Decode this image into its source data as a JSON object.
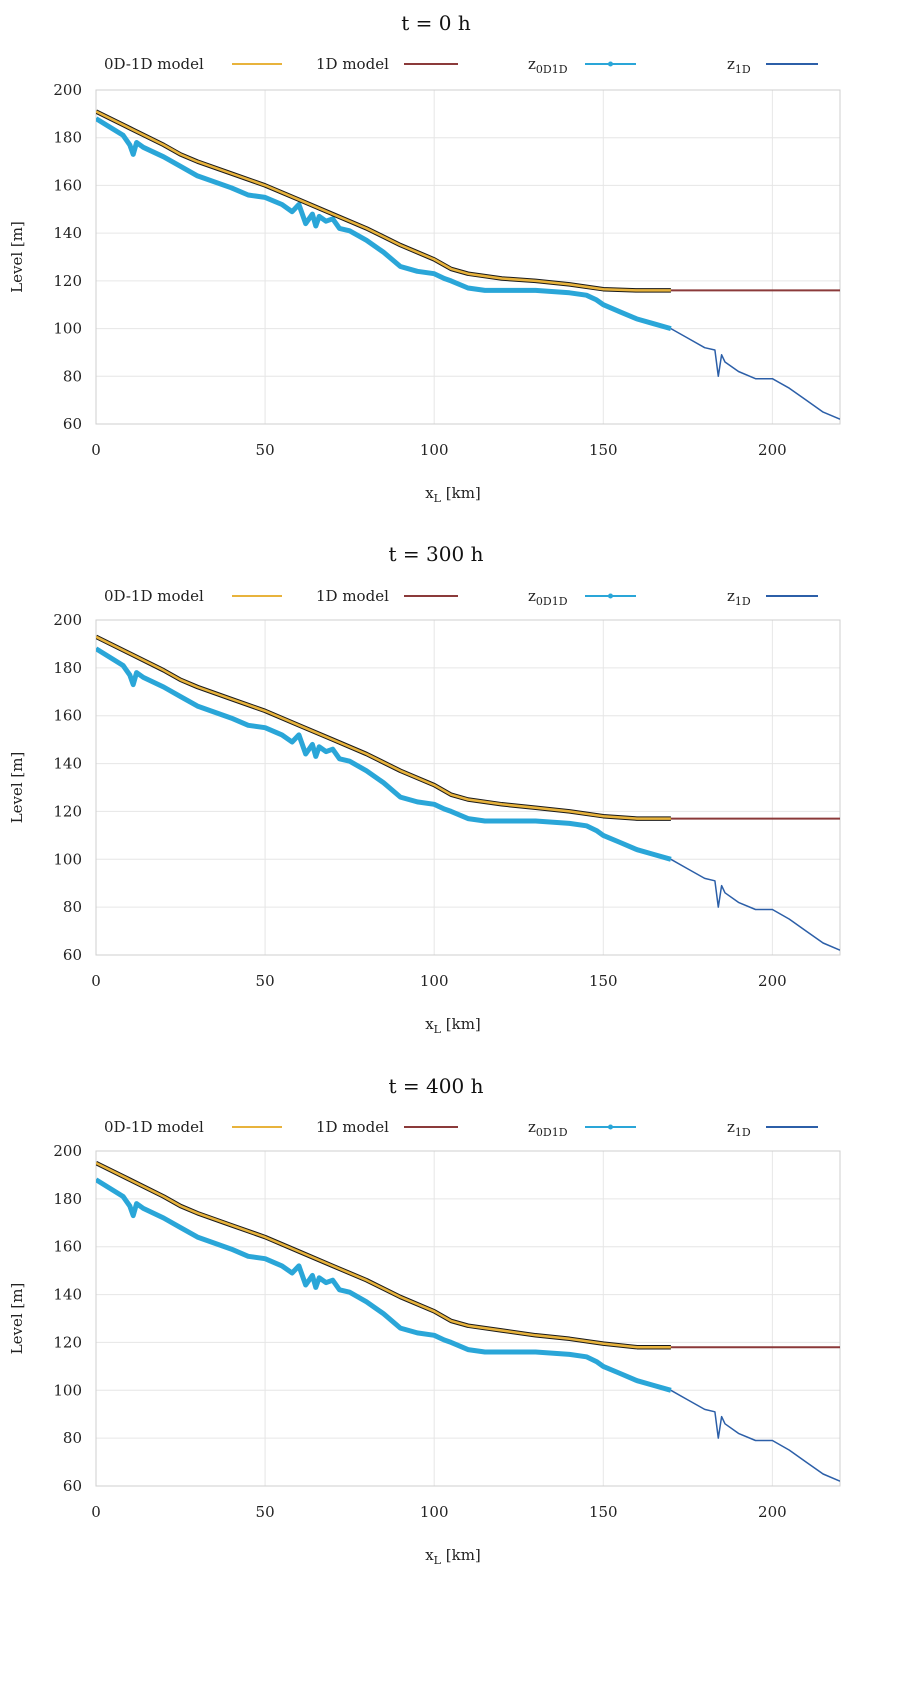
{
  "colors": {
    "model_0d1d": "#e8b33c",
    "model_0d1d_edge": "#1a1a1a",
    "model_1d": "#8b3a3a",
    "z_0d1d": "#2aa6d8",
    "z_1d": "#2c5fa8",
    "grid": "#e6e6e6",
    "axis": "#666666"
  },
  "legend": [
    {
      "key": "model_0d1d",
      "label": "0D-1D model",
      "sub": ""
    },
    {
      "key": "model_1d",
      "label": "1D model",
      "sub": ""
    },
    {
      "key": "z_0d1d",
      "label": "z",
      "sub": "0D1D"
    },
    {
      "key": "z_1d",
      "label": "z",
      "sub": "1D"
    }
  ],
  "chart_data": [
    {
      "type": "line",
      "title": "t = 0 h",
      "xlabel": "x",
      "xlabel_sub": "L",
      "xlabel_unit": "[km]",
      "ylabel": "Level [m]",
      "xlim": [
        0,
        220
      ],
      "ylim": [
        60,
        200
      ],
      "xticks": [
        0,
        50,
        100,
        150,
        200
      ],
      "yticks": [
        60,
        80,
        100,
        120,
        140,
        160,
        180,
        200
      ],
      "grid": true,
      "legend_position": "top",
      "series": [
        {
          "key": "model_0d1d",
          "name": "0D-1D model",
          "x": [
            0,
            10,
            20,
            25,
            30,
            40,
            50,
            60,
            70,
            80,
            90,
            100,
            105,
            110,
            120,
            130,
            140,
            150,
            160,
            170
          ],
          "y": [
            191,
            184,
            177,
            173,
            170,
            165,
            160,
            154,
            148,
            142,
            135,
            129,
            125,
            123,
            121,
            120,
            118.5,
            116.5,
            116,
            116
          ]
        },
        {
          "key": "model_1d",
          "name": "1D model",
          "x": [
            170,
            220
          ],
          "y": [
            116,
            116
          ]
        },
        {
          "key": "z_0d1d",
          "name": "z 0D1D",
          "x": [
            0,
            8,
            10,
            11,
            12,
            14,
            20,
            25,
            30,
            40,
            45,
            50,
            55,
            58,
            60,
            62,
            64,
            65,
            66,
            68,
            70,
            72,
            75,
            80,
            85,
            90,
            95,
            100,
            103,
            105,
            110,
            115,
            120,
            130,
            140,
            145,
            148,
            150,
            155,
            160,
            165,
            170
          ],
          "y": [
            188,
            181,
            177,
            173,
            178,
            176,
            172,
            168,
            164,
            159,
            156,
            155,
            152,
            149,
            152,
            144,
            148,
            143,
            147,
            145,
            146,
            142,
            141,
            137,
            132,
            126,
            124,
            123,
            121,
            120,
            117,
            116,
            116,
            116,
            115,
            114,
            112,
            110,
            107,
            104,
            102,
            100
          ]
        },
        {
          "key": "z_1d",
          "name": "z 1D",
          "x": [
            0,
            8,
            10,
            11,
            12,
            14,
            20,
            25,
            30,
            40,
            45,
            50,
            55,
            58,
            60,
            62,
            64,
            65,
            66,
            68,
            70,
            72,
            75,
            80,
            85,
            90,
            95,
            100,
            103,
            105,
            110,
            115,
            120,
            130,
            140,
            145,
            148,
            150,
            155,
            160,
            165,
            170,
            175,
            180,
            183,
            184,
            185,
            186,
            190,
            195,
            200,
            205,
            210,
            215,
            220
          ],
          "y": [
            188,
            181,
            177,
            173,
            178,
            176,
            172,
            168,
            164,
            159,
            156,
            155,
            152,
            149,
            152,
            144,
            148,
            143,
            147,
            145,
            146,
            142,
            141,
            137,
            132,
            126,
            124,
            123,
            121,
            120,
            117,
            116,
            116,
            116,
            115,
            114,
            112,
            110,
            107,
            104,
            102,
            100,
            96,
            92,
            91,
            80,
            89,
            86,
            82,
            79,
            79,
            75,
            70,
            65,
            62
          ]
        }
      ]
    },
    {
      "type": "line",
      "title": "t = 300 h",
      "xlabel": "x",
      "xlabel_sub": "L",
      "xlabel_unit": "[km]",
      "ylabel": "Level [m]",
      "xlim": [
        0,
        220
      ],
      "ylim": [
        60,
        200
      ],
      "xticks": [
        0,
        50,
        100,
        150,
        200
      ],
      "yticks": [
        60,
        80,
        100,
        120,
        140,
        160,
        180,
        200
      ],
      "grid": true,
      "legend_position": "top",
      "series": [
        {
          "key": "model_0d1d",
          "name": "0D-1D model",
          "x": [
            0,
            10,
            20,
            25,
            30,
            40,
            50,
            60,
            70,
            80,
            90,
            100,
            105,
            110,
            120,
            130,
            140,
            150,
            160,
            170
          ],
          "y": [
            193,
            186,
            179,
            175,
            172,
            167,
            162,
            156,
            150,
            144,
            137,
            131,
            127,
            125,
            123,
            121.5,
            120,
            118,
            117,
            117
          ]
        },
        {
          "key": "model_1d",
          "name": "1D model",
          "x": [
            170,
            220
          ],
          "y": [
            117,
            117
          ]
        },
        {
          "key": "z_0d1d",
          "name": "z 0D1D",
          "x": [
            0,
            8,
            10,
            11,
            12,
            14,
            20,
            25,
            30,
            40,
            45,
            50,
            55,
            58,
            60,
            62,
            64,
            65,
            66,
            68,
            70,
            72,
            75,
            80,
            85,
            90,
            95,
            100,
            103,
            105,
            110,
            115,
            120,
            130,
            140,
            145,
            148,
            150,
            155,
            160,
            165,
            170
          ],
          "y": [
            188,
            181,
            177,
            173,
            178,
            176,
            172,
            168,
            164,
            159,
            156,
            155,
            152,
            149,
            152,
            144,
            148,
            143,
            147,
            145,
            146,
            142,
            141,
            137,
            132,
            126,
            124,
            123,
            121,
            120,
            117,
            116,
            116,
            116,
            115,
            114,
            112,
            110,
            107,
            104,
            102,
            100
          ]
        },
        {
          "key": "z_1d",
          "name": "z 1D",
          "x": [
            0,
            8,
            10,
            11,
            12,
            14,
            20,
            25,
            30,
            40,
            45,
            50,
            55,
            58,
            60,
            62,
            64,
            65,
            66,
            68,
            70,
            72,
            75,
            80,
            85,
            90,
            95,
            100,
            103,
            105,
            110,
            115,
            120,
            130,
            140,
            145,
            148,
            150,
            155,
            160,
            165,
            170,
            175,
            180,
            183,
            184,
            185,
            186,
            190,
            195,
            200,
            205,
            210,
            215,
            220
          ],
          "y": [
            188,
            181,
            177,
            173,
            178,
            176,
            172,
            168,
            164,
            159,
            156,
            155,
            152,
            149,
            152,
            144,
            148,
            143,
            147,
            145,
            146,
            142,
            141,
            137,
            132,
            126,
            124,
            123,
            121,
            120,
            117,
            116,
            116,
            116,
            115,
            114,
            112,
            110,
            107,
            104,
            102,
            100,
            96,
            92,
            91,
            80,
            89,
            86,
            82,
            79,
            79,
            75,
            70,
            65,
            62
          ]
        }
      ]
    },
    {
      "type": "line",
      "title": "t = 400 h",
      "xlabel": "x",
      "xlabel_sub": "L",
      "xlabel_unit": "[km]",
      "ylabel": "Level [m]",
      "xlim": [
        0,
        220
      ],
      "ylim": [
        60,
        200
      ],
      "xticks": [
        0,
        50,
        100,
        150,
        200
      ],
      "yticks": [
        60,
        80,
        100,
        120,
        140,
        160,
        180,
        200
      ],
      "grid": true,
      "legend_position": "top",
      "series": [
        {
          "key": "model_0d1d",
          "name": "0D-1D model",
          "x": [
            0,
            10,
            20,
            25,
            30,
            40,
            50,
            60,
            70,
            80,
            90,
            100,
            105,
            110,
            120,
            130,
            140,
            150,
            160,
            170
          ],
          "y": [
            195,
            188,
            181,
            177,
            174,
            169,
            164,
            158,
            152,
            146,
            139,
            133,
            129,
            127,
            125,
            123,
            121.5,
            119.5,
            118,
            118
          ]
        },
        {
          "key": "model_1d",
          "name": "1D model",
          "x": [
            170,
            220
          ],
          "y": [
            118,
            118
          ]
        },
        {
          "key": "z_0d1d",
          "name": "z 0D1D",
          "x": [
            0,
            8,
            10,
            11,
            12,
            14,
            20,
            25,
            30,
            40,
            45,
            50,
            55,
            58,
            60,
            62,
            64,
            65,
            66,
            68,
            70,
            72,
            75,
            80,
            85,
            90,
            95,
            100,
            103,
            105,
            110,
            115,
            120,
            130,
            140,
            145,
            148,
            150,
            155,
            160,
            165,
            170
          ],
          "y": [
            188,
            181,
            177,
            173,
            178,
            176,
            172,
            168,
            164,
            159,
            156,
            155,
            152,
            149,
            152,
            144,
            148,
            143,
            147,
            145,
            146,
            142,
            141,
            137,
            132,
            126,
            124,
            123,
            121,
            120,
            117,
            116,
            116,
            116,
            115,
            114,
            112,
            110,
            107,
            104,
            102,
            100
          ]
        },
        {
          "key": "z_1d",
          "name": "z 1D",
          "x": [
            0,
            8,
            10,
            11,
            12,
            14,
            20,
            25,
            30,
            40,
            45,
            50,
            55,
            58,
            60,
            62,
            64,
            65,
            66,
            68,
            70,
            72,
            75,
            80,
            85,
            90,
            95,
            100,
            103,
            105,
            110,
            115,
            120,
            130,
            140,
            145,
            148,
            150,
            155,
            160,
            165,
            170,
            175,
            180,
            183,
            184,
            185,
            186,
            190,
            195,
            200,
            205,
            210,
            215,
            220
          ],
          "y": [
            188,
            181,
            177,
            173,
            178,
            176,
            172,
            168,
            164,
            159,
            156,
            155,
            152,
            149,
            152,
            144,
            148,
            143,
            147,
            145,
            146,
            142,
            141,
            137,
            132,
            126,
            124,
            123,
            121,
            120,
            117,
            116,
            116,
            116,
            115,
            114,
            112,
            110,
            107,
            104,
            102,
            100,
            96,
            92,
            91,
            80,
            89,
            86,
            82,
            79,
            79,
            75,
            70,
            65,
            62
          ]
        }
      ]
    }
  ]
}
